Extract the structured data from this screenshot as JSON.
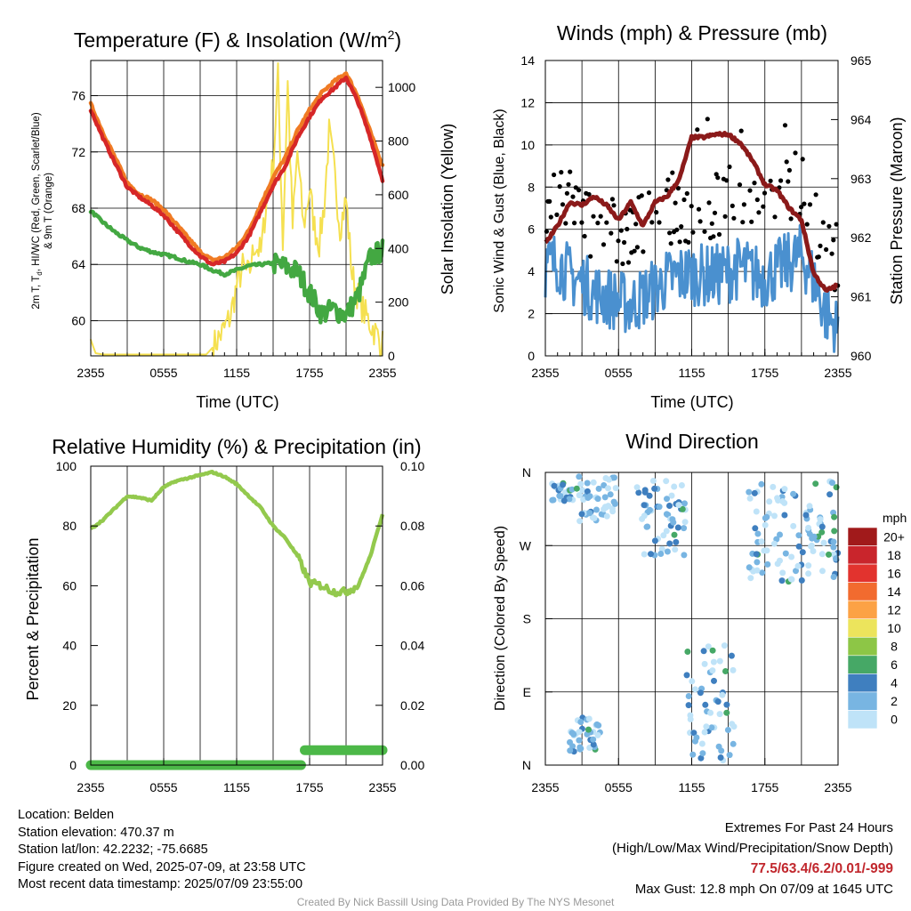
{
  "charts": [
    {
      "type": "line",
      "title": "Temperature (F) & Insolation (W/m²)",
      "ylabel_left": "2m T, Td, HI/WC (Red, Green, Scarlet/Blue) & 9m T (Orange)",
      "ylabel_right": "Solar Insolation (Yellow)",
      "xlabel": "Time (UTC)",
      "xticks": [
        "2355",
        "0555",
        "1155",
        "1755",
        "2355"
      ],
      "yticks_left": [
        "60",
        "64",
        "68",
        "72",
        "76"
      ],
      "yticks_right": [
        "0",
        "200",
        "400",
        "600",
        "800",
        "1000"
      ]
    },
    {
      "type": "line",
      "title": "Winds (mph) & Pressure (mb)",
      "ylabel_left": "Sonic Wind & Gust (Blue, Black)",
      "ylabel_right": "Station Pressure (Maroon)",
      "xlabel": "Time (UTC)",
      "xticks": [
        "2355",
        "0555",
        "1155",
        "1755",
        "2355"
      ],
      "yticks_left": [
        "0",
        "2",
        "4",
        "6",
        "8",
        "10",
        "12",
        "14"
      ],
      "yticks_right": [
        "960",
        "961",
        "962",
        "963",
        "964",
        "965"
      ]
    },
    {
      "type": "line",
      "title": "Relative Humidity (%) & Precipitation (in)",
      "ylabel_left": "Percent & Precipitation",
      "xticks": [
        "2355",
        "0555",
        "1155",
        "1755",
        "2355"
      ],
      "yticks_left": [
        "0",
        "20",
        "40",
        "60",
        "80",
        "100"
      ],
      "yticks_right": [
        "0.00",
        "0.02",
        "0.04",
        "0.06",
        "0.08",
        "0.10"
      ]
    },
    {
      "type": "scatter",
      "title": "Wind Direction",
      "ylabel_left": "Direction (Colored By Speed)",
      "xticks": [
        "2355",
        "0555",
        "1155",
        "1755",
        "2355"
      ],
      "yticks_left": [
        "N",
        "E",
        "S",
        "W",
        "N"
      ],
      "legend_title": "mph",
      "legend_labels": [
        "20+",
        "18",
        "16",
        "14",
        "12",
        "10",
        "8",
        "6",
        "4",
        "2",
        "0"
      ]
    }
  ],
  "chart_data": [
    {
      "type": "line",
      "x_hours": [
        0,
        6,
        12,
        18,
        24
      ],
      "x_ticks": [
        "2355",
        "0555",
        "1155",
        "1755",
        "2355"
      ],
      "ylim_left": [
        57.5,
        78.5
      ],
      "ylim_right": [
        0,
        1100
      ],
      "series": [
        {
          "color": "#d62728",
          "axis": "left",
          "x": [
            0,
            1,
            2,
            3,
            4,
            5,
            6,
            7,
            8,
            9,
            10,
            11,
            12,
            13,
            14,
            15,
            16,
            17,
            18,
            19,
            20,
            21,
            22,
            23,
            24
          ],
          "y": [
            75.0,
            73.0,
            71.2,
            69.5,
            68.8,
            68.2,
            67.5,
            66.5,
            65.5,
            64.6,
            64.0,
            64.2,
            64.8,
            66.0,
            67.8,
            69.6,
            71.0,
            73.0,
            74.5,
            75.8,
            76.5,
            77.3,
            75.5,
            73.0,
            70.0
          ]
        },
        {
          "color": "#f07b24",
          "axis": "left",
          "x": [
            0,
            1,
            2,
            3,
            4,
            5,
            6,
            7,
            8,
            9,
            10,
            11,
            12,
            13,
            14,
            15,
            16,
            17,
            18,
            19,
            20,
            21,
            22,
            23,
            24
          ],
          "y": [
            75.4,
            73.4,
            71.6,
            69.8,
            69.0,
            68.6,
            67.9,
            66.9,
            65.9,
            64.9,
            64.3,
            64.5,
            65.2,
            66.4,
            68.3,
            70.2,
            71.6,
            73.5,
            75.0,
            76.2,
            77.0,
            77.6,
            75.9,
            73.4,
            71.0
          ]
        },
        {
          "color": "#43a842",
          "axis": "left",
          "x": [
            0,
            1,
            2,
            3,
            4,
            5,
            6,
            7,
            8,
            9,
            10,
            11,
            12,
            13,
            14,
            15,
            16,
            17,
            18,
            19,
            20,
            21,
            22,
            23,
            24
          ],
          "y": [
            67.8,
            67.0,
            66.3,
            65.7,
            65.2,
            64.9,
            64.7,
            64.5,
            64.2,
            64.0,
            63.6,
            63.3,
            63.6,
            63.9,
            64.0,
            64.1,
            63.8,
            63.5,
            62.0,
            60.5,
            60.8,
            60.4,
            61.8,
            64.5,
            65.0
          ]
        },
        {
          "color": "#f5e050",
          "axis": "right",
          "x": [
            0,
            0.4,
            1,
            2,
            3,
            4,
            5,
            6,
            7,
            8,
            9,
            9.5,
            10,
            11,
            11.5,
            12,
            12.5,
            13,
            13.5,
            14,
            14.5,
            15,
            15.4,
            15.8,
            16.2,
            16.6,
            17,
            17.5,
            18,
            18.4,
            18.8,
            19.2,
            19.6,
            20,
            20.5,
            21,
            21.5,
            22,
            22.5,
            23,
            23.5,
            24
          ],
          "y": [
            60,
            10,
            5,
            5,
            5,
            5,
            5,
            5,
            5,
            5,
            5,
            5,
            30,
            100,
            150,
            260,
            330,
            300,
            420,
            380,
            600,
            700,
            1050,
            420,
            1020,
            480,
            760,
            480,
            620,
            480,
            420,
            560,
            830,
            700,
            480,
            580,
            300,
            220,
            160,
            120,
            80,
            40
          ]
        }
      ]
    },
    {
      "type": "line",
      "x_hours": [
        0,
        6,
        12,
        18,
        24
      ],
      "x_ticks": [
        "2355",
        "0555",
        "1155",
        "1755",
        "2355"
      ],
      "ylim_left": [
        0,
        14
      ],
      "ylim_right": [
        960,
        965
      ],
      "series": [
        {
          "color": "#4a90cf",
          "axis": "left",
          "x": [
            0,
            1,
            2,
            3,
            4,
            5,
            6,
            7,
            8,
            9,
            10,
            11,
            12,
            13,
            14,
            15,
            16,
            17,
            18,
            19,
            20,
            21,
            22,
            23,
            24
          ],
          "y": [
            4.2,
            4.5,
            3.8,
            3.5,
            3.0,
            2.8,
            2.6,
            2.4,
            2.8,
            3.2,
            3.6,
            3.8,
            3.9,
            3.8,
            3.8,
            4.0,
            4.2,
            3.9,
            3.7,
            4.1,
            4.4,
            4.8,
            3.6,
            2.0,
            1.2
          ]
        },
        {
          "color": "#8b1a1a",
          "axis": "right",
          "x": [
            0,
            1,
            2,
            3,
            4,
            5,
            6,
            7,
            8,
            9,
            10,
            11,
            12,
            13,
            14,
            15,
            16,
            17,
            18,
            19,
            20,
            21,
            22,
            23,
            24
          ],
          "y": [
            961.9,
            962.2,
            962.6,
            962.55,
            962.7,
            962.55,
            962.3,
            962.6,
            962.2,
            962.6,
            962.7,
            963.0,
            963.7,
            963.7,
            963.75,
            963.75,
            963.6,
            963.3,
            962.9,
            962.8,
            962.5,
            962.3,
            961.4,
            961.1,
            961.2
          ]
        }
      ]
    },
    {
      "type": "line",
      "x_hours": [
        0,
        6,
        12,
        18,
        24
      ],
      "x_ticks": [
        "2355",
        "0555",
        "1155",
        "1755",
        "2355"
      ],
      "ylim_left": [
        0,
        100
      ],
      "ylim_right": [
        0,
        0.1
      ],
      "series": [
        {
          "color": "#93c94d",
          "axis": "left",
          "x": [
            0,
            1,
            2,
            3,
            4,
            5,
            6,
            7,
            8,
            9,
            10,
            11,
            12,
            13,
            14,
            15,
            16,
            17,
            18,
            19,
            20,
            21,
            22,
            23,
            24
          ],
          "y": [
            79,
            82,
            86,
            90,
            89.5,
            88.5,
            93,
            95,
            96,
            97,
            98,
            96.5,
            94,
            90,
            86,
            80,
            76,
            70,
            61,
            60,
            58,
            58,
            60,
            70,
            84
          ]
        },
        {
          "color": "#4cb848",
          "axis": "right",
          "x": [
            0,
            17.3,
            17.6,
            24
          ],
          "y": [
            0.0,
            0.0,
            0.005,
            0.005
          ]
        }
      ]
    },
    {
      "type": "scatter",
      "x_hours": [
        0,
        6,
        12,
        18,
        24
      ],
      "x_ticks": [
        "2355",
        "0555",
        "1155",
        "1755",
        "2355"
      ],
      "ylim": [
        0,
        360
      ],
      "colorbar": {
        "labels": [
          "20+",
          "18",
          "16",
          "14",
          "12",
          "10",
          "8",
          "6",
          "4",
          "2",
          "0"
        ],
        "colors": [
          "#a11a1b",
          "#c9252c",
          "#e2332e",
          "#f26b2f",
          "#fca245",
          "#ece45c",
          "#8dc646",
          "#46a866",
          "#3f7fbf",
          "#78b5e2",
          "#bfe3f8"
        ]
      },
      "clusters": [
        {
          "x": [
            0.5,
            2.3
          ],
          "direction_range": [
            324,
            348
          ]
        },
        {
          "x": [
            2.5,
            5.8
          ],
          "direction_range": [
            300,
            355
          ]
        },
        {
          "x": [
            7.5,
            11.5
          ],
          "direction_range": [
            255,
            350
          ]
        },
        {
          "x": [
            2.0,
            4.5
          ],
          "direction_range": [
            15,
            60
          ]
        },
        {
          "x": [
            11.6,
            15.5
          ],
          "direction_range": [
            0,
            150
          ]
        },
        {
          "x": [
            16.5,
            24.0
          ],
          "direction_range": [
            225,
            350
          ]
        }
      ]
    }
  ],
  "footer": {
    "location": "Location: Belden",
    "elevation": "Station elevation: 470.37 m",
    "latlon": "Station lat/lon: 42.2232; -75.6685",
    "created": "Figure created on Wed, 2025-07-09, at 23:58 UTC",
    "recent": "Most recent data timestamp: 2025/07/09 23:55:00",
    "extremes_title": "Extremes For Past 24 Hours",
    "extremes_sub": "(High/Low/Max Wind/Precipitation/Snow Depth)",
    "extremes_values": "77.5/63.4/6.2/0.01/-999",
    "max_gust": "Max Gust: 12.8 mph On 07/09 at 1645 UTC",
    "credit": "Created By Nick Bassill Using Data Provided By The NYS Mesonet"
  }
}
